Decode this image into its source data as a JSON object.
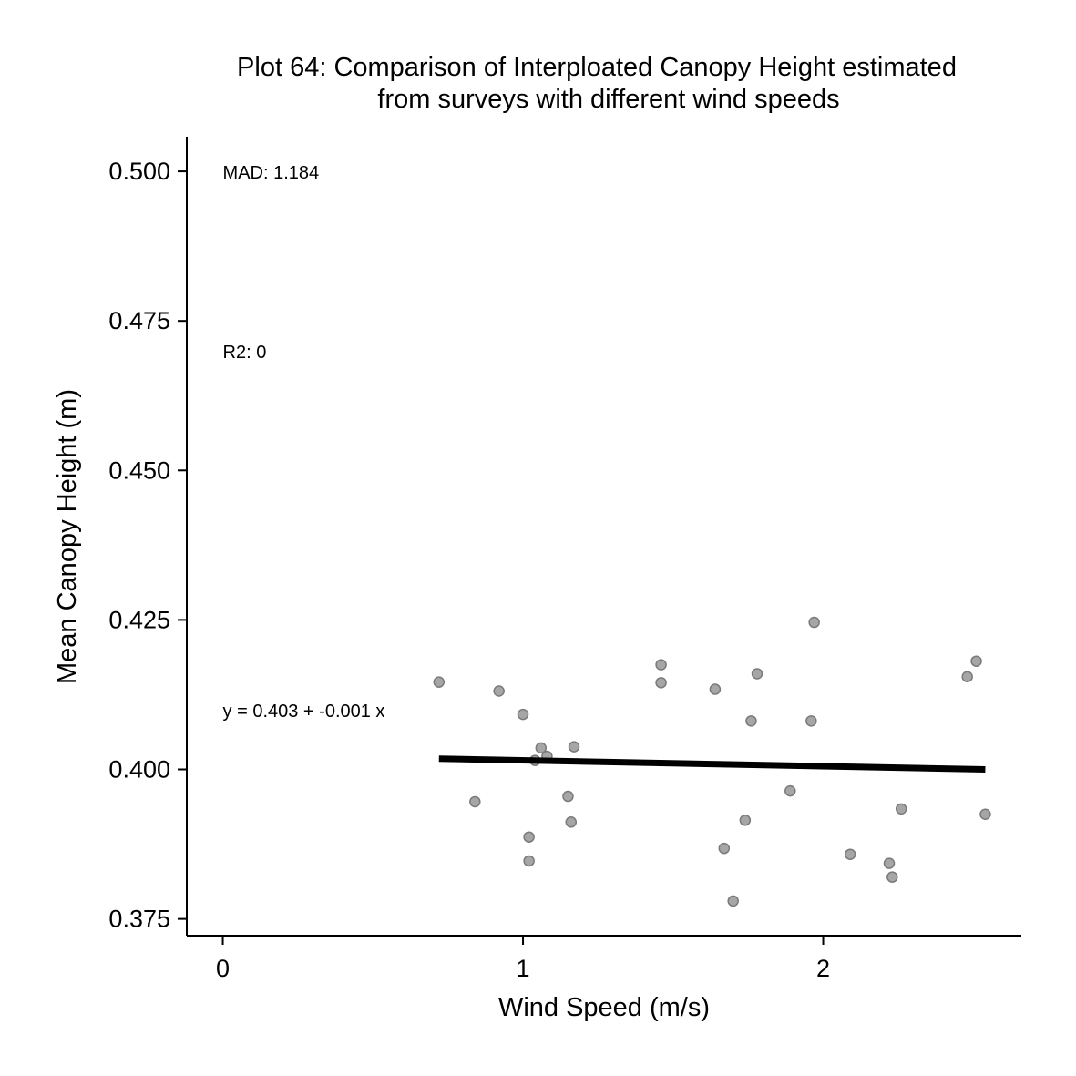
{
  "chart_data": {
    "type": "scatter",
    "title_lines": [
      "Plot 64: Comparison of Interploated Canopy Height estimated",
      "from surveys with different wind speeds"
    ],
    "xlabel": "Wind Speed (m/s)",
    "ylabel": "Mean Canopy Height (m)",
    "xlim": [
      -0.12,
      2.66
    ],
    "ylim": [
      0.3722,
      0.5058
    ],
    "x_ticks": [
      0,
      1,
      2
    ],
    "x_tick_labels": [
      "0",
      "1",
      "2"
    ],
    "y_ticks": [
      0.375,
      0.4,
      0.425,
      0.45,
      0.475,
      0.5
    ],
    "y_tick_labels": [
      "0.375",
      "0.400",
      "0.425",
      "0.450",
      "0.475",
      "0.500"
    ],
    "grid": false,
    "legend": "none",
    "point_color": "#a6a6a6",
    "point_edge_color": "#7a7a7a",
    "line_color": "#000000",
    "annotations": [
      {
        "text": "MAD: 1.184",
        "x": 0,
        "y": 0.5
      },
      {
        "text": "R2: 0",
        "x": 0,
        "y": 0.47
      },
      {
        "text": "y =  0.403 + -0.001 x",
        "x": 0,
        "y": 0.41
      }
    ],
    "fit_line": {
      "x": [
        0.72,
        2.54
      ],
      "y": [
        0.4018,
        0.4
      ],
      "intercept": 0.403,
      "slope": -0.001
    },
    "points": [
      {
        "x": 0.72,
        "y": 0.4146
      },
      {
        "x": 0.84,
        "y": 0.3946
      },
      {
        "x": 0.92,
        "y": 0.4131
      },
      {
        "x": 1.0,
        "y": 0.4092
      },
      {
        "x": 1.02,
        "y": 0.3887
      },
      {
        "x": 1.02,
        "y": 0.3847
      },
      {
        "x": 1.04,
        "y": 0.4015
      },
      {
        "x": 1.06,
        "y": 0.4036
      },
      {
        "x": 1.08,
        "y": 0.4022
      },
      {
        "x": 1.15,
        "y": 0.3955
      },
      {
        "x": 1.16,
        "y": 0.3912
      },
      {
        "x": 1.17,
        "y": 0.4038
      },
      {
        "x": 1.46,
        "y": 0.4175
      },
      {
        "x": 1.46,
        "y": 0.4145
      },
      {
        "x": 1.64,
        "y": 0.4134
      },
      {
        "x": 1.67,
        "y": 0.3868
      },
      {
        "x": 1.7,
        "y": 0.378
      },
      {
        "x": 1.74,
        "y": 0.3915
      },
      {
        "x": 1.76,
        "y": 0.4081
      },
      {
        "x": 1.78,
        "y": 0.416
      },
      {
        "x": 1.89,
        "y": 0.3964
      },
      {
        "x": 1.96,
        "y": 0.4081
      },
      {
        "x": 1.97,
        "y": 0.4246
      },
      {
        "x": 2.09,
        "y": 0.3858
      },
      {
        "x": 2.22,
        "y": 0.3843
      },
      {
        "x": 2.23,
        "y": 0.382
      },
      {
        "x": 2.26,
        "y": 0.3934
      },
      {
        "x": 2.48,
        "y": 0.4155
      },
      {
        "x": 2.51,
        "y": 0.4181
      },
      {
        "x": 2.54,
        "y": 0.3925
      }
    ]
  }
}
